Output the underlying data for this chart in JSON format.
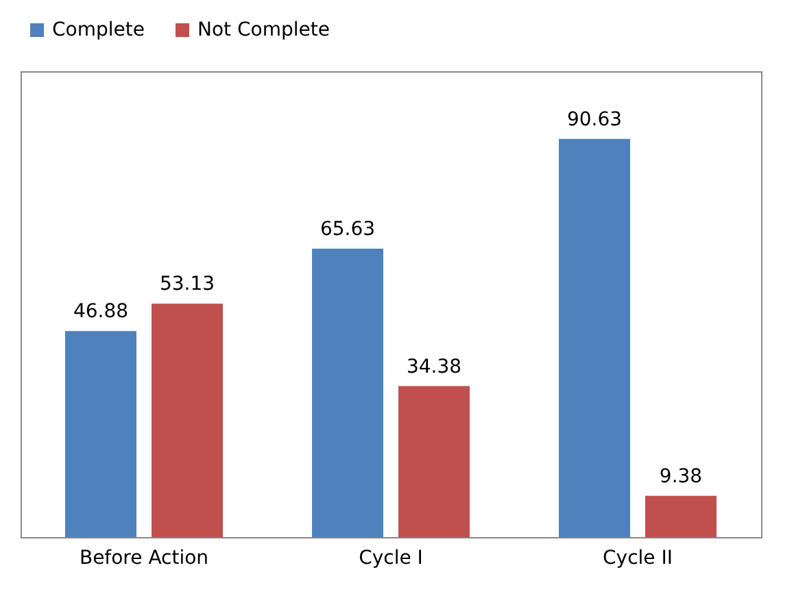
{
  "chart_data": {
    "type": "bar",
    "categories": [
      "Before Action",
      "Cycle I",
      "Cycle II"
    ],
    "series": [
      {
        "name": "Complete",
        "color": "#4f81bd",
        "values": [
          46.88,
          65.63,
          90.63
        ]
      },
      {
        "name": "Not Complete",
        "color": "#c0504d",
        "values": [
          53.13,
          34.38,
          9.38
        ]
      }
    ],
    "data_labels": true,
    "legend": "top",
    "grid": false
  }
}
